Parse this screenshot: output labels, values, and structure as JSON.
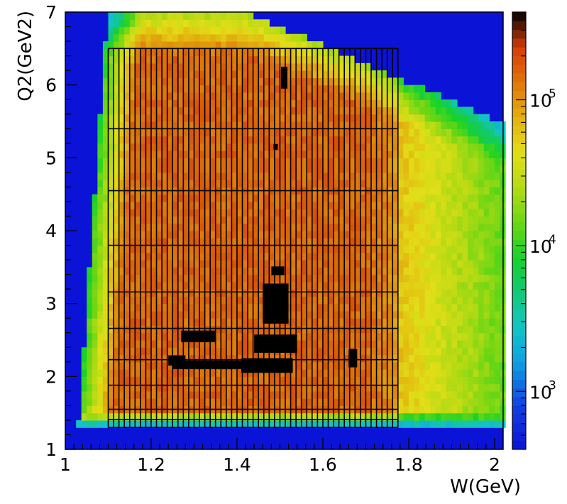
{
  "chart_data": {
    "type": "heatmap",
    "xlabel": "W(GeV)",
    "ylabel": "Q2(GeV2)",
    "xlim": [
      1.0,
      2.02
    ],
    "ylim": [
      1.0,
      7.0
    ],
    "x_ticks": [
      "1",
      "1.2",
      "1.4",
      "1.6",
      "1.8",
      "2"
    ],
    "y_ticks": [
      "1",
      "2",
      "3",
      "4",
      "5",
      "6",
      "7"
    ],
    "colorbar": {
      "scale": "log",
      "range": [
        400,
        400000
      ],
      "labels": [
        {
          "base": "10",
          "exp": "3",
          "value": 1000
        },
        {
          "base": "10",
          "exp": "4",
          "value": 10000
        },
        {
          "base": "10",
          "exp": "5",
          "value": 100000
        }
      ]
    },
    "background_color": "#0b13d6",
    "binning_grid": {
      "w_edges": [
        1.1,
        1.1125,
        1.125,
        1.1375,
        1.15,
        1.1625,
        1.175,
        1.1875,
        1.2,
        1.2125,
        1.225,
        1.2375,
        1.25,
        1.2625,
        1.275,
        1.2875,
        1.3,
        1.3125,
        1.325,
        1.3375,
        1.35,
        1.3625,
        1.375,
        1.3875,
        1.4,
        1.4125,
        1.425,
        1.4375,
        1.45,
        1.4625,
        1.475,
        1.4875,
        1.5,
        1.5125,
        1.525,
        1.5375,
        1.55,
        1.5625,
        1.575,
        1.5875,
        1.6,
        1.6125,
        1.625,
        1.6375,
        1.65,
        1.6625,
        1.675,
        1.6875,
        1.7,
        1.7125,
        1.725,
        1.7375,
        1.75,
        1.7625,
        1.775
      ],
      "q2_edges": [
        1.3,
        1.41,
        1.55,
        1.88,
        2.23,
        2.66,
        3.16,
        3.8,
        4.55,
        5.4,
        6.5
      ]
    },
    "hot_spots": [
      {
        "w": 1.31,
        "q2": 2.55,
        "w_width": 0.08,
        "q2_width": 0.16
      },
      {
        "w": 1.26,
        "q2": 2.22,
        "w_width": 0.04,
        "q2_width": 0.14
      },
      {
        "w": 1.33,
        "q2": 2.16,
        "w_width": 0.16,
        "q2_width": 0.12
      },
      {
        "w": 1.47,
        "q2": 2.15,
        "w_width": 0.12,
        "q2_width": 0.2
      },
      {
        "w": 1.49,
        "q2": 2.45,
        "w_width": 0.1,
        "q2_width": 0.25
      },
      {
        "w": 1.49,
        "q2": 3.0,
        "w_width": 0.06,
        "q2_width": 0.55
      },
      {
        "w": 1.495,
        "q2": 3.45,
        "w_width": 0.03,
        "q2_width": 0.12
      },
      {
        "w": 1.51,
        "q2": 6.1,
        "w_width": 0.015,
        "q2_width": 0.3
      },
      {
        "w": 1.49,
        "q2": 5.15,
        "w_width": 0.01,
        "q2_width": 0.08
      },
      {
        "w": 1.67,
        "q2": 2.25,
        "w_width": 0.02,
        "q2_width": 0.25
      }
    ]
  }
}
